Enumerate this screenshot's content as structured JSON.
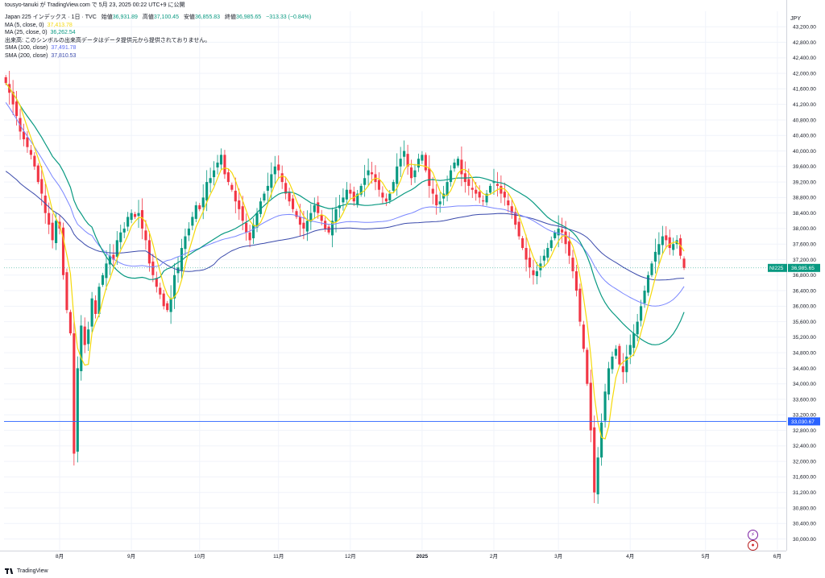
{
  "header": {
    "author_line": "tousyo-tanuki が TradingView.com で 5月 23, 2025 00:22 UTC+9 に公開",
    "title": "Japan 225 インデックス · 1日 · TVC",
    "open_label": "始値",
    "open": "36,931.89",
    "high_label": "高値",
    "high": "37,100.45",
    "low_label": "安値",
    "low": "36,855.83",
    "close_label": "終値",
    "close": "36,985.65",
    "change": "−313.33 (−0.84%)"
  },
  "indicators": [
    {
      "label": "MA (5, close, 0)",
      "value": "37,413.78",
      "color": "#f5d90a"
    },
    {
      "label": "MA (25, close, 0)",
      "value": "36,262.54",
      "color": "#089981"
    },
    {
      "label": "出来高: このシンボルの出来高データはデータ提供元から提供されておりません。",
      "value": "",
      "color": "#131722"
    },
    {
      "label": "SMA (100, close)",
      "value": "37,491.78",
      "color": "#5b6cf0"
    },
    {
      "label": "SMA (200, close)",
      "value": "37,810.53",
      "color": "#3949ab"
    }
  ],
  "currency": "JPY",
  "price_badges": [
    {
      "symbol": "NI225",
      "value": "36,985.65",
      "color": "#089981"
    },
    {
      "symbol": "",
      "value": "33,030.67",
      "color": "#2962ff"
    }
  ],
  "footer_brand": "TradingView",
  "colors": {
    "up": "#089981",
    "down": "#f23645",
    "grid": "#f0f3fa",
    "hline": "#2962ff"
  },
  "chart_data": {
    "type": "candlestick",
    "title": "Japan 225 インデックス · 1日 · TVC",
    "y_axis_ticks": [
      30000,
      30400,
      30800,
      31200,
      31600,
      32000,
      32400,
      32800,
      33200,
      33600,
      34000,
      34400,
      34800,
      35200,
      35600,
      36000,
      36400,
      36800,
      37200,
      37600,
      38000,
      38400,
      38800,
      39200,
      39600,
      40000,
      40400,
      40800,
      41200,
      41600,
      42000,
      42400,
      42800,
      43200
    ],
    "y_tick_labels": [
      "30,000.00",
      "30,400.00",
      "30,800.00",
      "31,200.00",
      "31,600.00",
      "32,000.00",
      "32,400.00",
      "32,800.00",
      "33,200.00",
      "33,600.00",
      "34,000.00",
      "34,400.00",
      "34,800.00",
      "35,200.00",
      "35,600.00",
      "36,000.00",
      "36,400.00",
      "36,800.00",
      "37,200.00",
      "37,600.00",
      "38,000.00",
      "38,400.00",
      "38,800.00",
      "39,200.00",
      "39,600.00",
      "40,000.00",
      "40,400.00",
      "40,800.00",
      "41,200.00",
      "41,600.00",
      "42,000.00",
      "42,400.00",
      "42,800.00",
      "43,200.00"
    ],
    "ylim": [
      29700,
      43600
    ],
    "x_tick_labels": [
      "8月",
      "9月",
      "10月",
      "11月",
      "12月",
      "2025",
      "2月",
      "3月",
      "4月",
      "5月",
      "6月"
    ],
    "x_tick_bar_index": [
      15,
      35,
      54,
      76,
      96,
      116,
      136,
      154,
      174,
      195,
      215
    ],
    "n_slots": 218,
    "horizontal_line": 33030.67,
    "closes": [
      41750,
      41500,
      41200,
      40900,
      40500,
      40300,
      40100,
      39900,
      39600,
      39200,
      38900,
      38400,
      38100,
      37700,
      38200,
      38000,
      36800,
      35900,
      35300,
      32200,
      34400,
      35500,
      35000,
      35400,
      36200,
      35800,
      36500,
      36800,
      37100,
      37300,
      37200,
      37700,
      37900,
      38000,
      38300,
      38400,
      38300,
      38400,
      38000,
      37700,
      37100,
      36800,
      36500,
      36300,
      36000,
      35900,
      36200,
      36800,
      37000,
      37500,
      37800,
      38000,
      38300,
      38600,
      38500,
      38800,
      39200,
      39300,
      39500,
      39700,
      39900,
      39400,
      39200,
      39000,
      38700,
      38500,
      38200,
      37900,
      37700,
      38100,
      38400,
      38700,
      38900,
      39100,
      39400,
      39600,
      39500,
      39200,
      38900,
      38700,
      38500,
      38300,
      38100,
      38000,
      38200,
      38400,
      38600,
      38400,
      38200,
      38000,
      37900,
      38200,
      38500,
      38600,
      38800,
      39000,
      38900,
      38700,
      38900,
      39100,
      39300,
      39500,
      39400,
      39200,
      39000,
      38800,
      38700,
      38900,
      39200,
      39600,
      39800,
      40000,
      39600,
      39300,
      39500,
      39800,
      39900,
      39500,
      39100,
      38900,
      38600,
      38700,
      38900,
      39200,
      39500,
      39700,
      39800,
      39400,
      39200,
      39100,
      39000,
      38900,
      38800,
      38700,
      38900,
      39100,
      39200,
      39100,
      38900,
      38800,
      38600,
      38400,
      38100,
      37800,
      37500,
      37200,
      37000,
      36800,
      36900,
      37100,
      37300,
      37500,
      37700,
      37900,
      38000,
      37900,
      37600,
      37300,
      36900,
      36400,
      35600,
      34900,
      34000,
      32800,
      31200,
      32100,
      33000,
      33800,
      34400,
      34700,
      34900,
      34500,
      34300,
      34700,
      35000,
      35300,
      35600,
      36000,
      36400,
      36800,
      37100,
      37400,
      37600,
      37800,
      37700,
      37500,
      37600,
      37700,
      37300,
      36985.65
    ],
    "ma5": {
      "name": "MA (5, close, 0)"
    },
    "ma25": {
      "name": "MA (25, close, 0)"
    },
    "sma100": {
      "name": "SMA (100, close)"
    },
    "sma200": {
      "name": "SMA (200, close)"
    }
  }
}
